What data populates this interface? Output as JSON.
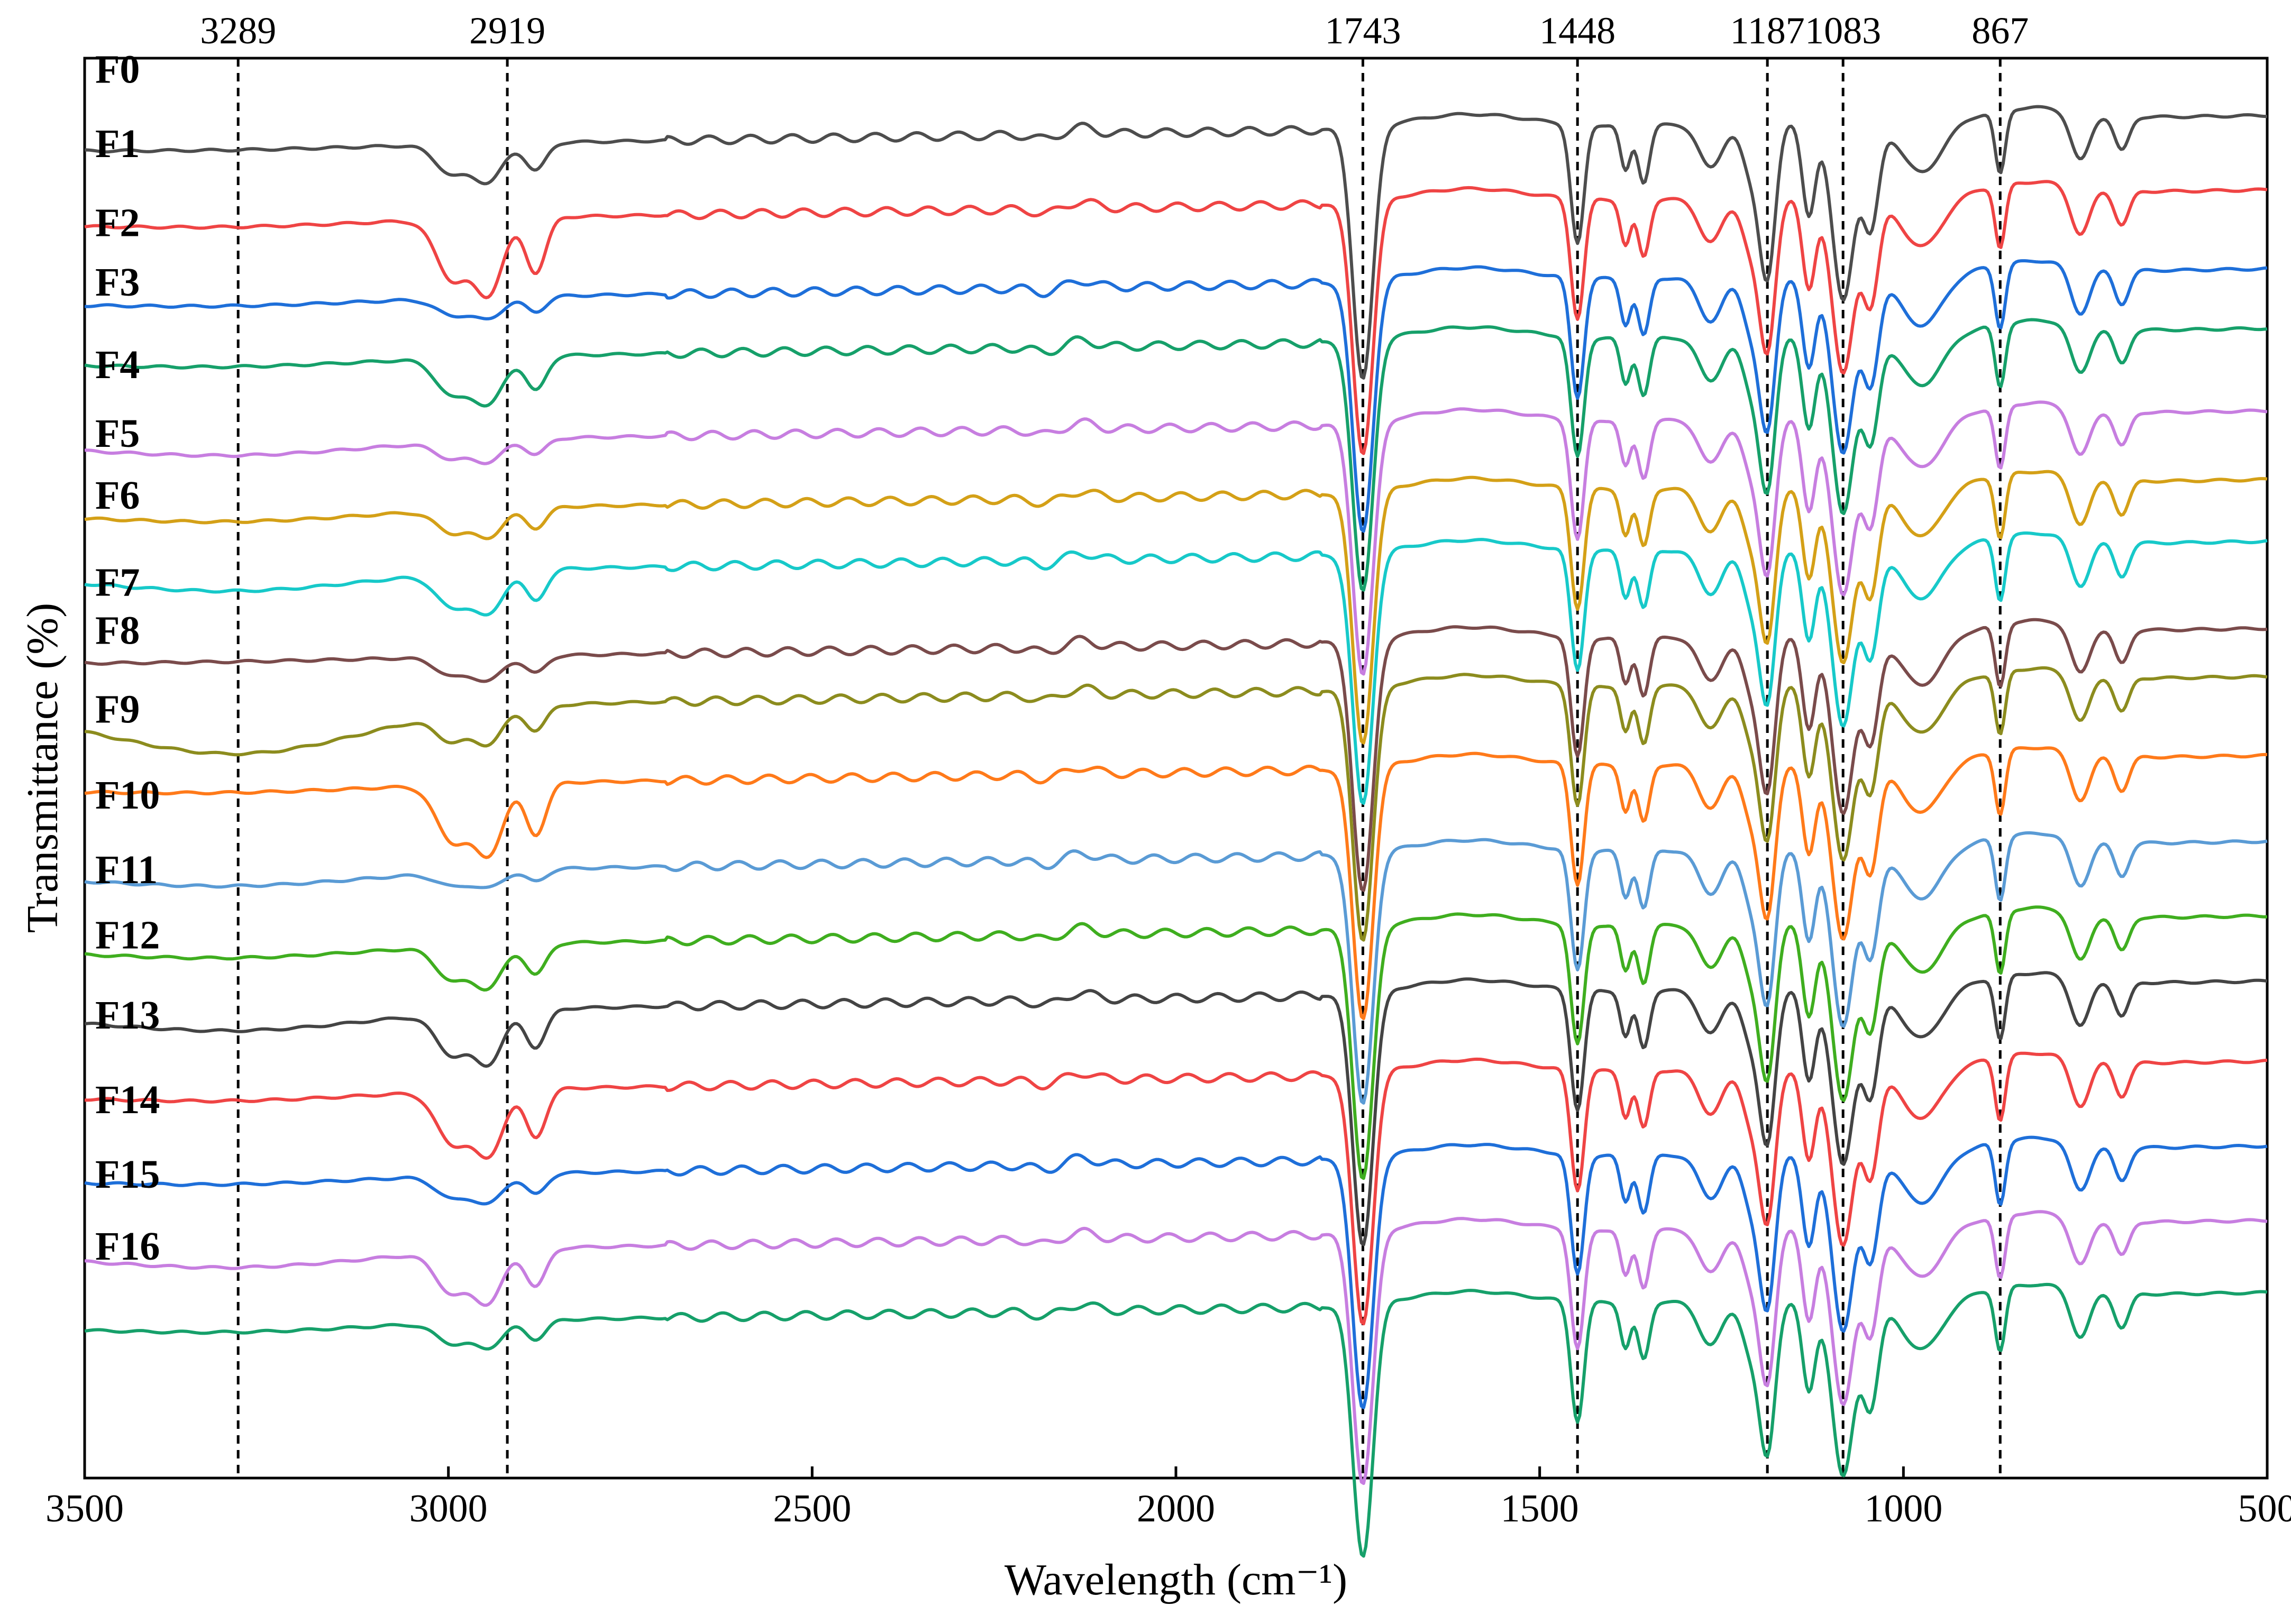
{
  "chart_data": {
    "type": "line",
    "title": "",
    "xlabel": "Wavelength (cm⁻¹)",
    "ylabel": "Transmittance (%)",
    "xlim": [
      3500,
      500
    ],
    "x_reversed": true,
    "y_ticks_shown": false,
    "grid": false,
    "x_ticks": [
      3500,
      3000,
      2500,
      2000,
      1500,
      1000,
      500
    ],
    "x_tick_labels": [
      "3500",
      "3000",
      "2500",
      "2000",
      "1500",
      "1000",
      "500"
    ],
    "reference_peaks": [
      {
        "x": 3289,
        "label": "3289"
      },
      {
        "x": 2919,
        "label": "2919"
      },
      {
        "x": 1743,
        "label": "1743"
      },
      {
        "x": 1448,
        "label": "1448"
      },
      {
        "x": 1187,
        "label": "1187"
      },
      {
        "x": 1083,
        "label": "1083"
      },
      {
        "x": 867,
        "label": "867"
      }
    ],
    "series": [
      {
        "name": "F0",
        "color": "#4d4d4d",
        "baseline": 97.0,
        "ch_strength": 0.8,
        "wide_band": 0.1
      },
      {
        "name": "F1",
        "color": "#ef4444",
        "baseline": 90.5,
        "ch_strength": 1.6,
        "wide_band": 0.2
      },
      {
        "name": "F2",
        "color": "#1e6fd9",
        "baseline": 83.6,
        "ch_strength": 0.45,
        "wide_band": 0.2
      },
      {
        "name": "F3",
        "color": "#16a06a",
        "baseline": 78.4,
        "ch_strength": 1.0,
        "wide_band": 0.25
      },
      {
        "name": "F4",
        "color": "#c77ee0",
        "baseline": 71.2,
        "ch_strength": 0.45,
        "wide_band": 0.5
      },
      {
        "name": "F5",
        "color": "#d4a017",
        "baseline": 65.2,
        "ch_strength": 0.6,
        "wide_band": 0.4
      },
      {
        "name": "F6",
        "color": "#17c9c9",
        "baseline": 59.8,
        "ch_strength": 0.9,
        "wide_band": 0.7
      },
      {
        "name": "F7",
        "color": "#7a4b4b",
        "baseline": 52.2,
        "ch_strength": 0.5,
        "wide_band": 0.05
      },
      {
        "name": "F8",
        "color": "#8c8c1e",
        "baseline": 48.0,
        "ch_strength": 0.7,
        "wide_band": 1.8
      },
      {
        "name": "F9",
        "color": "#ff7a1a",
        "baseline": 41.1,
        "ch_strength": 1.5,
        "wide_band": 0.2
      },
      {
        "name": "F10",
        "color": "#5a9bd5",
        "baseline": 33.6,
        "ch_strength": 0.35,
        "wide_band": 0.5
      },
      {
        "name": "F11",
        "color": "#3fae1f",
        "baseline": 27.1,
        "ch_strength": 0.9,
        "wide_band": 0.4
      },
      {
        "name": "F12",
        "color": "#444444",
        "baseline": 21.4,
        "ch_strength": 1.1,
        "wide_band": 0.7
      },
      {
        "name": "F13",
        "color": "#ef4444",
        "baseline": 14.4,
        "ch_strength": 1.4,
        "wide_band": 0.3
      },
      {
        "name": "F14",
        "color": "#1e6fd9",
        "baseline": 7.0,
        "ch_strength": 0.6,
        "wide_band": 0.25
      },
      {
        "name": "F15",
        "color": "#c77ee0",
        "baseline": 0.5,
        "ch_strength": 1.1,
        "wide_band": 0.6
      },
      {
        "name": "F16",
        "color": "#16a06a",
        "baseline": -5.8,
        "ch_strength": 0.55,
        "wide_band": 0.3
      }
    ]
  }
}
